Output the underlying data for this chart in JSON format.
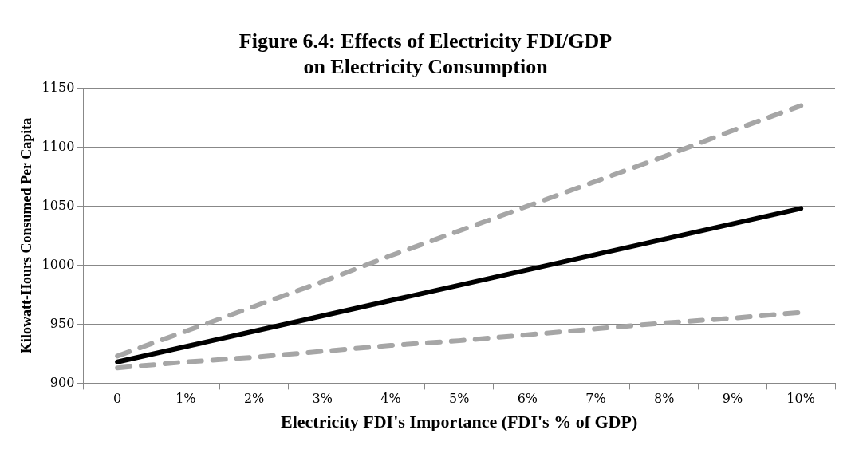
{
  "chart_data": {
    "type": "line",
    "title": "Figure 6.4: Effects of Electricity FDI/GDP\non Electricity Consumption",
    "xlabel": "Electricity FDI's Importance (FDI's % of GDP)",
    "ylabel": "Kilowatt-Hours Consumed Per Capita",
    "categories": [
      "0",
      "1%",
      "2%",
      "3%",
      "4%",
      "5%",
      "6%",
      "7%",
      "8%",
      "9%",
      "10%"
    ],
    "series": [
      {
        "color": "#a6a6a6",
        "line_style": "dashed",
        "values": [
          923,
          944,
          965,
          986,
          1008,
          1029,
          1050,
          1071,
          1092,
          1114,
          1135
        ]
      },
      {
        "color": "#000000",
        "line_style": "solid",
        "values": [
          918,
          931,
          944,
          957,
          970,
          983,
          996,
          1009,
          1022,
          1035,
          1048
        ]
      },
      {
        "color": "#a6a6a6",
        "line_style": "dashed",
        "values": [
          913,
          918,
          922,
          927,
          932,
          936,
          941,
          946,
          951,
          955,
          960
        ]
      }
    ],
    "ylim": [
      900,
      1150
    ],
    "yticks": [
      900,
      950,
      1000,
      1050,
      1100,
      1150
    ],
    "grid": "y",
    "legend": false,
    "marker": "none"
  }
}
